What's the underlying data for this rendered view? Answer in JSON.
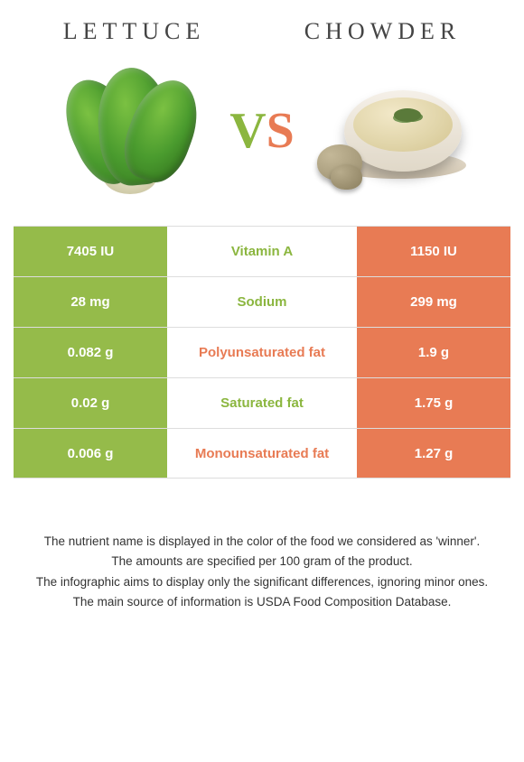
{
  "header": {
    "left_title": "LETTUCE",
    "right_title": "CHOWDER"
  },
  "vs": {
    "v": "V",
    "s": "S"
  },
  "colors": {
    "left_bg": "#95bb4a",
    "right_bg": "#e87b54",
    "left_text": "#8bb63f",
    "right_text": "#e87b54"
  },
  "table": {
    "rows": [
      {
        "left": "7405 IU",
        "label": "Vitamin A",
        "right": "1150 IU",
        "winner": "left"
      },
      {
        "left": "28 mg",
        "label": "Sodium",
        "right": "299 mg",
        "winner": "left"
      },
      {
        "left": "0.082 g",
        "label": "Polyunsaturated fat",
        "right": "1.9 g",
        "winner": "right"
      },
      {
        "left": "0.02 g",
        "label": "Saturated fat",
        "right": "1.75 g",
        "winner": "left"
      },
      {
        "left": "0.006 g",
        "label": "Monounsaturated fat",
        "right": "1.27 g",
        "winner": "right"
      }
    ]
  },
  "footer": {
    "line1": "The nutrient name is displayed in the color of the food we considered as 'winner'.",
    "line2": "The amounts are specified per 100 gram of the product.",
    "line3": "The infographic aims to display only the significant differences, ignoring minor ones.",
    "line4": "The main source of information is USDA Food Composition Database."
  }
}
